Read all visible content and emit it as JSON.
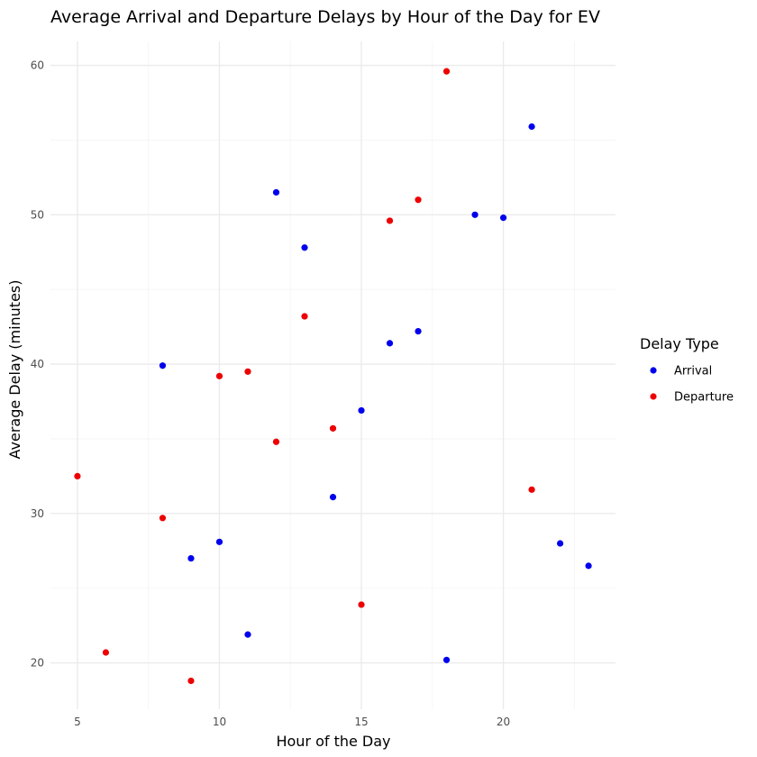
{
  "chart_data": {
    "type": "scatter",
    "title": "Average Arrival and Departure Delays by Hour of the Day for EV",
    "xlabel": "Hour of the Day",
    "ylabel": "Average Delay (minutes)",
    "xlim": [
      4.05,
      23.95
    ],
    "ylim": [
      16.9,
      61.6
    ],
    "x_ticks": [
      5,
      10,
      15,
      20
    ],
    "y_ticks": [
      20,
      30,
      40,
      50,
      60
    ],
    "grid": true,
    "legend": {
      "title": "Delay Type",
      "placement": "right"
    },
    "series": [
      {
        "name": "Arrival",
        "color": "#0000ee",
        "points": [
          {
            "x": 8,
            "y": 39.9
          },
          {
            "x": 9,
            "y": 27.0
          },
          {
            "x": 10,
            "y": 28.1
          },
          {
            "x": 11,
            "y": 21.9
          },
          {
            "x": 12,
            "y": 51.5
          },
          {
            "x": 13,
            "y": 47.8
          },
          {
            "x": 14,
            "y": 31.1
          },
          {
            "x": 15,
            "y": 36.9
          },
          {
            "x": 16,
            "y": 41.4
          },
          {
            "x": 17,
            "y": 42.2
          },
          {
            "x": 18,
            "y": 20.2
          },
          {
            "x": 19,
            "y": 50.0
          },
          {
            "x": 20,
            "y": 49.8
          },
          {
            "x": 21,
            "y": 55.9
          },
          {
            "x": 22,
            "y": 28.0
          },
          {
            "x": 23,
            "y": 26.5
          }
        ]
      },
      {
        "name": "Departure",
        "color": "#ee0000",
        "points": [
          {
            "x": 5,
            "y": 32.5
          },
          {
            "x": 6,
            "y": 20.7
          },
          {
            "x": 8,
            "y": 29.7
          },
          {
            "x": 9,
            "y": 18.8
          },
          {
            "x": 10,
            "y": 39.2
          },
          {
            "x": 11,
            "y": 39.5
          },
          {
            "x": 12,
            "y": 34.8
          },
          {
            "x": 13,
            "y": 43.2
          },
          {
            "x": 14,
            "y": 35.7
          },
          {
            "x": 15,
            "y": 23.9
          },
          {
            "x": 16,
            "y": 49.6
          },
          {
            "x": 17,
            "y": 51.0
          },
          {
            "x": 18,
            "y": 59.6
          },
          {
            "x": 21,
            "y": 31.6
          }
        ]
      }
    ]
  }
}
